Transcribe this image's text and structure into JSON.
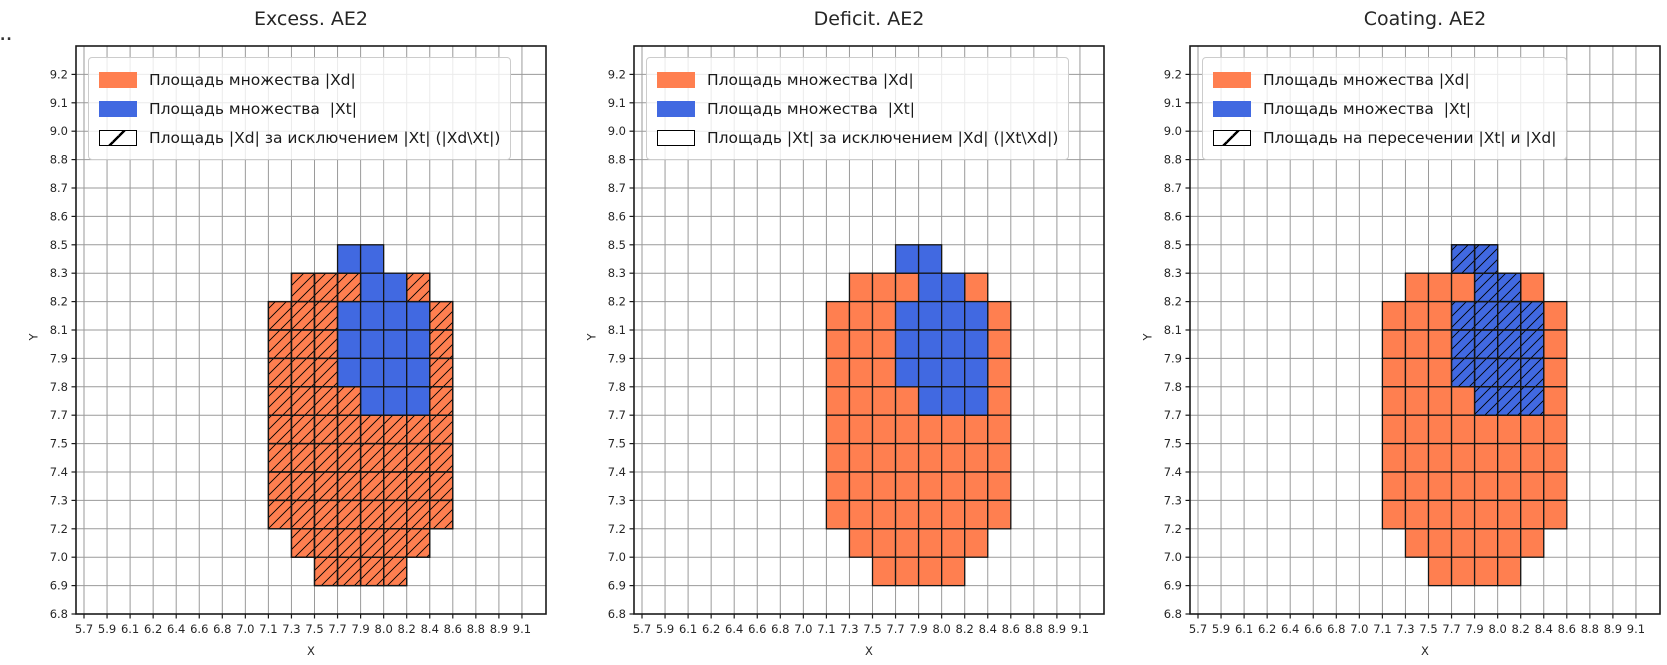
{
  "page": {
    "corner_text": ".."
  },
  "colors": {
    "xd_fill": "#FF7F50",
    "xt_fill": "#4169E1",
    "grid_line": "#9a9a9a",
    "cell_border": "#151515",
    "axis_box": "#1a1a1a",
    "hatch_line": "#000000"
  },
  "chart_data": [
    {
      "type": "heatmap",
      "title": "Excess. AE2",
      "xlabel": "X",
      "ylabel": "Y",
      "grid": true,
      "x_ticks": [
        "5.7",
        "5.9",
        "6.1",
        "6.2",
        "6.4",
        "6.6",
        "6.8",
        "7.0",
        "7.1",
        "7.3",
        "7.5",
        "7.7",
        "7.9",
        "8.0",
        "8.2",
        "8.4",
        "8.6",
        "8.8",
        "8.9",
        "9.1"
      ],
      "y_ticks": [
        "6.8",
        "6.9",
        "7.0",
        "7.2",
        "7.3",
        "7.4",
        "7.5",
        "7.7",
        "7.8",
        "7.9",
        "8.1",
        "8.2",
        "8.3",
        "8.5",
        "8.6",
        "8.7",
        "8.8",
        "9.0",
        "9.1",
        "9.2"
      ],
      "legend_position": "upper left",
      "legend": [
        {
          "swatch": "xd",
          "label": "Площадь множества |Xd|"
        },
        {
          "swatch": "xt",
          "label": "Площадь множества  |Xt|"
        },
        {
          "swatch": "hatch",
          "label": "Площадь |Xd| за исключением |Xt| (|Xd\\Xt|)"
        }
      ],
      "hatch_on": "xd",
      "cells": {
        "xd": [
          [
            9,
            11
          ],
          [
            10,
            11
          ],
          [
            11,
            11
          ],
          [
            14,
            11
          ],
          [
            8,
            10
          ],
          [
            9,
            10
          ],
          [
            10,
            10
          ],
          [
            15,
            10
          ],
          [
            8,
            9
          ],
          [
            9,
            9
          ],
          [
            10,
            9
          ],
          [
            15,
            9
          ],
          [
            8,
            8
          ],
          [
            9,
            8
          ],
          [
            10,
            8
          ],
          [
            15,
            8
          ],
          [
            8,
            7
          ],
          [
            9,
            7
          ],
          [
            10,
            7
          ],
          [
            11,
            7
          ],
          [
            15,
            7
          ],
          [
            8,
            6
          ],
          [
            9,
            6
          ],
          [
            10,
            6
          ],
          [
            11,
            6
          ],
          [
            12,
            6
          ],
          [
            13,
            6
          ],
          [
            14,
            6
          ],
          [
            15,
            6
          ],
          [
            8,
            5
          ],
          [
            9,
            5
          ],
          [
            10,
            5
          ],
          [
            11,
            5
          ],
          [
            12,
            5
          ],
          [
            13,
            5
          ],
          [
            14,
            5
          ],
          [
            15,
            5
          ],
          [
            8,
            4
          ],
          [
            9,
            4
          ],
          [
            10,
            4
          ],
          [
            11,
            4
          ],
          [
            12,
            4
          ],
          [
            13,
            4
          ],
          [
            14,
            4
          ],
          [
            15,
            4
          ],
          [
            8,
            3
          ],
          [
            9,
            3
          ],
          [
            10,
            3
          ],
          [
            11,
            3
          ],
          [
            12,
            3
          ],
          [
            13,
            3
          ],
          [
            14,
            3
          ],
          [
            15,
            3
          ],
          [
            9,
            2
          ],
          [
            10,
            2
          ],
          [
            11,
            2
          ],
          [
            12,
            2
          ],
          [
            13,
            2
          ],
          [
            14,
            2
          ],
          [
            10,
            1
          ],
          [
            11,
            1
          ],
          [
            12,
            1
          ],
          [
            13,
            1
          ]
        ],
        "xt": [
          [
            11,
            12
          ],
          [
            12,
            12
          ],
          [
            12,
            11
          ],
          [
            13,
            11
          ],
          [
            11,
            10
          ],
          [
            12,
            10
          ],
          [
            13,
            10
          ],
          [
            14,
            10
          ],
          [
            11,
            9
          ],
          [
            12,
            9
          ],
          [
            13,
            9
          ],
          [
            14,
            9
          ],
          [
            11,
            8
          ],
          [
            12,
            8
          ],
          [
            13,
            8
          ],
          [
            14,
            8
          ],
          [
            12,
            7
          ],
          [
            13,
            7
          ],
          [
            14,
            7
          ]
        ]
      }
    },
    {
      "type": "heatmap",
      "title": "Deficit. AE2",
      "xlabel": "X",
      "ylabel": "Y",
      "grid": true,
      "x_ticks": [
        "5.7",
        "5.9",
        "6.1",
        "6.2",
        "6.4",
        "6.6",
        "6.8",
        "7.0",
        "7.1",
        "7.3",
        "7.5",
        "7.7",
        "7.9",
        "8.0",
        "8.2",
        "8.4",
        "8.6",
        "8.8",
        "8.9",
        "9.1"
      ],
      "y_ticks": [
        "6.8",
        "6.9",
        "7.0",
        "7.2",
        "7.3",
        "7.4",
        "7.5",
        "7.7",
        "7.8",
        "7.9",
        "8.1",
        "8.2",
        "8.3",
        "8.5",
        "8.6",
        "8.7",
        "8.8",
        "9.0",
        "9.1",
        "9.2"
      ],
      "legend_position": "upper left",
      "legend": [
        {
          "swatch": "xd",
          "label": "Площадь множества |Xd|"
        },
        {
          "swatch": "xt",
          "label": "Площадь множества  |Xt|"
        },
        {
          "swatch": "empty",
          "label": "Площадь |Xt| за исключением |Xd| (|Xt\\Xd|)"
        }
      ],
      "hatch_on": null,
      "cells": {
        "xd": [
          [
            9,
            11
          ],
          [
            10,
            11
          ],
          [
            11,
            11
          ],
          [
            14,
            11
          ],
          [
            8,
            10
          ],
          [
            9,
            10
          ],
          [
            10,
            10
          ],
          [
            15,
            10
          ],
          [
            8,
            9
          ],
          [
            9,
            9
          ],
          [
            10,
            9
          ],
          [
            15,
            9
          ],
          [
            8,
            8
          ],
          [
            9,
            8
          ],
          [
            10,
            8
          ],
          [
            15,
            8
          ],
          [
            8,
            7
          ],
          [
            9,
            7
          ],
          [
            10,
            7
          ],
          [
            11,
            7
          ],
          [
            15,
            7
          ],
          [
            8,
            6
          ],
          [
            9,
            6
          ],
          [
            10,
            6
          ],
          [
            11,
            6
          ],
          [
            12,
            6
          ],
          [
            13,
            6
          ],
          [
            14,
            6
          ],
          [
            15,
            6
          ],
          [
            8,
            5
          ],
          [
            9,
            5
          ],
          [
            10,
            5
          ],
          [
            11,
            5
          ],
          [
            12,
            5
          ],
          [
            13,
            5
          ],
          [
            14,
            5
          ],
          [
            15,
            5
          ],
          [
            8,
            4
          ],
          [
            9,
            4
          ],
          [
            10,
            4
          ],
          [
            11,
            4
          ],
          [
            12,
            4
          ],
          [
            13,
            4
          ],
          [
            14,
            4
          ],
          [
            15,
            4
          ],
          [
            8,
            3
          ],
          [
            9,
            3
          ],
          [
            10,
            3
          ],
          [
            11,
            3
          ],
          [
            12,
            3
          ],
          [
            13,
            3
          ],
          [
            14,
            3
          ],
          [
            15,
            3
          ],
          [
            9,
            2
          ],
          [
            10,
            2
          ],
          [
            11,
            2
          ],
          [
            12,
            2
          ],
          [
            13,
            2
          ],
          [
            14,
            2
          ],
          [
            10,
            1
          ],
          [
            11,
            1
          ],
          [
            12,
            1
          ],
          [
            13,
            1
          ]
        ],
        "xt": [
          [
            11,
            12
          ],
          [
            12,
            12
          ],
          [
            12,
            11
          ],
          [
            13,
            11
          ],
          [
            11,
            10
          ],
          [
            12,
            10
          ],
          [
            13,
            10
          ],
          [
            14,
            10
          ],
          [
            11,
            9
          ],
          [
            12,
            9
          ],
          [
            13,
            9
          ],
          [
            14,
            9
          ],
          [
            11,
            8
          ],
          [
            12,
            8
          ],
          [
            13,
            8
          ],
          [
            14,
            8
          ],
          [
            12,
            7
          ],
          [
            13,
            7
          ],
          [
            14,
            7
          ]
        ]
      }
    },
    {
      "type": "heatmap",
      "title": "Coating. AE2",
      "xlabel": "X",
      "ylabel": "Y",
      "grid": true,
      "x_ticks": [
        "5.7",
        "5.9",
        "6.1",
        "6.2",
        "6.4",
        "6.6",
        "6.8",
        "7.0",
        "7.1",
        "7.3",
        "7.5",
        "7.7",
        "7.9",
        "8.0",
        "8.2",
        "8.4",
        "8.6",
        "8.8",
        "8.9",
        "9.1"
      ],
      "y_ticks": [
        "6.8",
        "6.9",
        "7.0",
        "7.2",
        "7.3",
        "7.4",
        "7.5",
        "7.7",
        "7.8",
        "7.9",
        "8.1",
        "8.2",
        "8.3",
        "8.5",
        "8.6",
        "8.7",
        "8.8",
        "9.0",
        "9.1",
        "9.2"
      ],
      "legend_position": "upper left",
      "legend": [
        {
          "swatch": "xd",
          "label": "Площадь множества |Xd|"
        },
        {
          "swatch": "xt",
          "label": "Площадь множества  |Xt|"
        },
        {
          "swatch": "hatch",
          "label": "Площадь на пересечении |Xt| и |Xd|"
        }
      ],
      "hatch_on": "xt",
      "cells": {
        "xd": [
          [
            9,
            11
          ],
          [
            10,
            11
          ],
          [
            11,
            11
          ],
          [
            14,
            11
          ],
          [
            8,
            10
          ],
          [
            9,
            10
          ],
          [
            10,
            10
          ],
          [
            15,
            10
          ],
          [
            8,
            9
          ],
          [
            9,
            9
          ],
          [
            10,
            9
          ],
          [
            15,
            9
          ],
          [
            8,
            8
          ],
          [
            9,
            8
          ],
          [
            10,
            8
          ],
          [
            15,
            8
          ],
          [
            8,
            7
          ],
          [
            9,
            7
          ],
          [
            10,
            7
          ],
          [
            11,
            7
          ],
          [
            15,
            7
          ],
          [
            8,
            6
          ],
          [
            9,
            6
          ],
          [
            10,
            6
          ],
          [
            11,
            6
          ],
          [
            12,
            6
          ],
          [
            13,
            6
          ],
          [
            14,
            6
          ],
          [
            15,
            6
          ],
          [
            8,
            5
          ],
          [
            9,
            5
          ],
          [
            10,
            5
          ],
          [
            11,
            5
          ],
          [
            12,
            5
          ],
          [
            13,
            5
          ],
          [
            14,
            5
          ],
          [
            15,
            5
          ],
          [
            8,
            4
          ],
          [
            9,
            4
          ],
          [
            10,
            4
          ],
          [
            11,
            4
          ],
          [
            12,
            4
          ],
          [
            13,
            4
          ],
          [
            14,
            4
          ],
          [
            15,
            4
          ],
          [
            8,
            3
          ],
          [
            9,
            3
          ],
          [
            10,
            3
          ],
          [
            11,
            3
          ],
          [
            12,
            3
          ],
          [
            13,
            3
          ],
          [
            14,
            3
          ],
          [
            15,
            3
          ],
          [
            9,
            2
          ],
          [
            10,
            2
          ],
          [
            11,
            2
          ],
          [
            12,
            2
          ],
          [
            13,
            2
          ],
          [
            14,
            2
          ],
          [
            10,
            1
          ],
          [
            11,
            1
          ],
          [
            12,
            1
          ],
          [
            13,
            1
          ]
        ],
        "xt": [
          [
            11,
            12
          ],
          [
            12,
            12
          ],
          [
            12,
            11
          ],
          [
            13,
            11
          ],
          [
            11,
            10
          ],
          [
            12,
            10
          ],
          [
            13,
            10
          ],
          [
            14,
            10
          ],
          [
            11,
            9
          ],
          [
            12,
            9
          ],
          [
            13,
            9
          ],
          [
            14,
            9
          ],
          [
            11,
            8
          ],
          [
            12,
            8
          ],
          [
            13,
            8
          ],
          [
            14,
            8
          ],
          [
            12,
            7
          ],
          [
            13,
            7
          ],
          [
            14,
            7
          ]
        ]
      }
    }
  ]
}
